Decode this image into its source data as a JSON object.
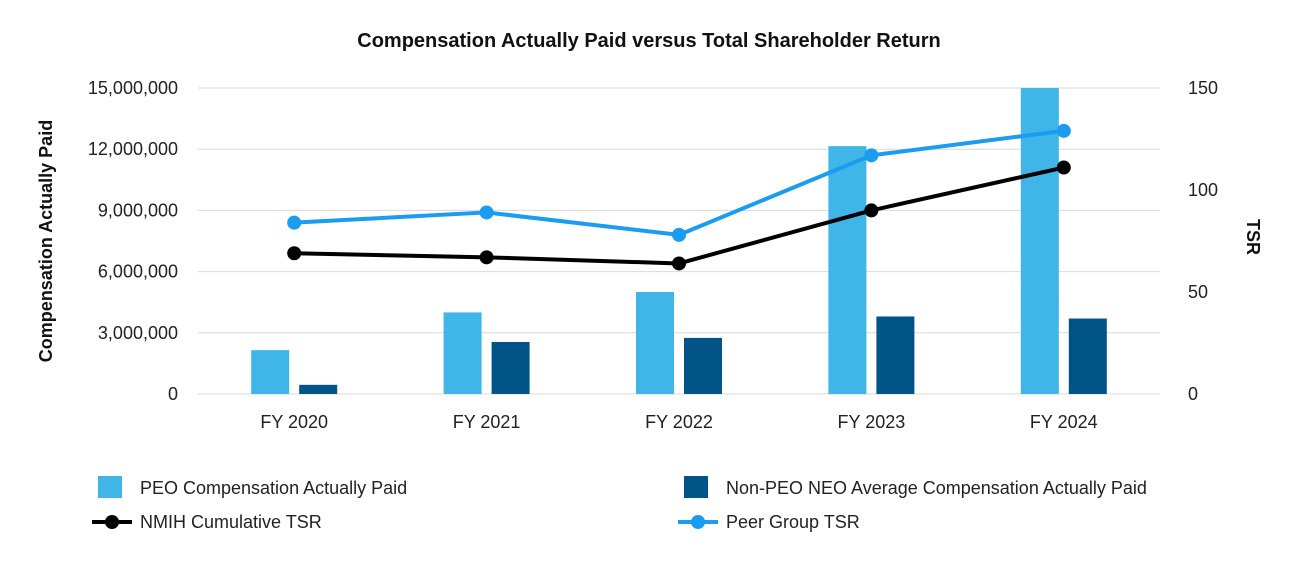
{
  "chart_data": {
    "type": "bar",
    "title": "Compensation Actually Paid versus Total Shareholder Return",
    "categories": [
      "FY 2020",
      "FY 2021",
      "FY 2022",
      "FY 2023",
      "FY 2024"
    ],
    "ylabel": "Compensation Actually Paid",
    "y2label": "TSR",
    "ylim": [
      0,
      15000000
    ],
    "y2lim": [
      0,
      150
    ],
    "yticks": [
      "0",
      "3,000,000",
      "6,000,000",
      "9,000,000",
      "12,000,000",
      "15,000,000"
    ],
    "y2ticks": [
      "0",
      "50",
      "100",
      "150"
    ],
    "grid": true,
    "legend_position": "bottom",
    "series": [
      {
        "name": "PEO Compensation Actually Paid",
        "kind": "bar",
        "axis": "left",
        "color": "#3fb5e8",
        "values": [
          2150000,
          4000000,
          5000000,
          12150000,
          15000000
        ]
      },
      {
        "name": "Non-PEO NEO Average Compensation Actually Paid",
        "kind": "bar",
        "axis": "left",
        "color": "#005487",
        "values": [
          450000,
          2550000,
          2750000,
          3800000,
          3700000
        ]
      },
      {
        "name": "NMIH Cumulative TSR",
        "kind": "line",
        "axis": "right",
        "color": "#000000",
        "values": [
          69,
          67,
          64,
          90,
          111
        ]
      },
      {
        "name": "Peer Group TSR",
        "kind": "line",
        "axis": "right",
        "color": "#1a9cf0",
        "values": [
          84,
          89,
          78,
          117,
          129
        ]
      }
    ]
  }
}
